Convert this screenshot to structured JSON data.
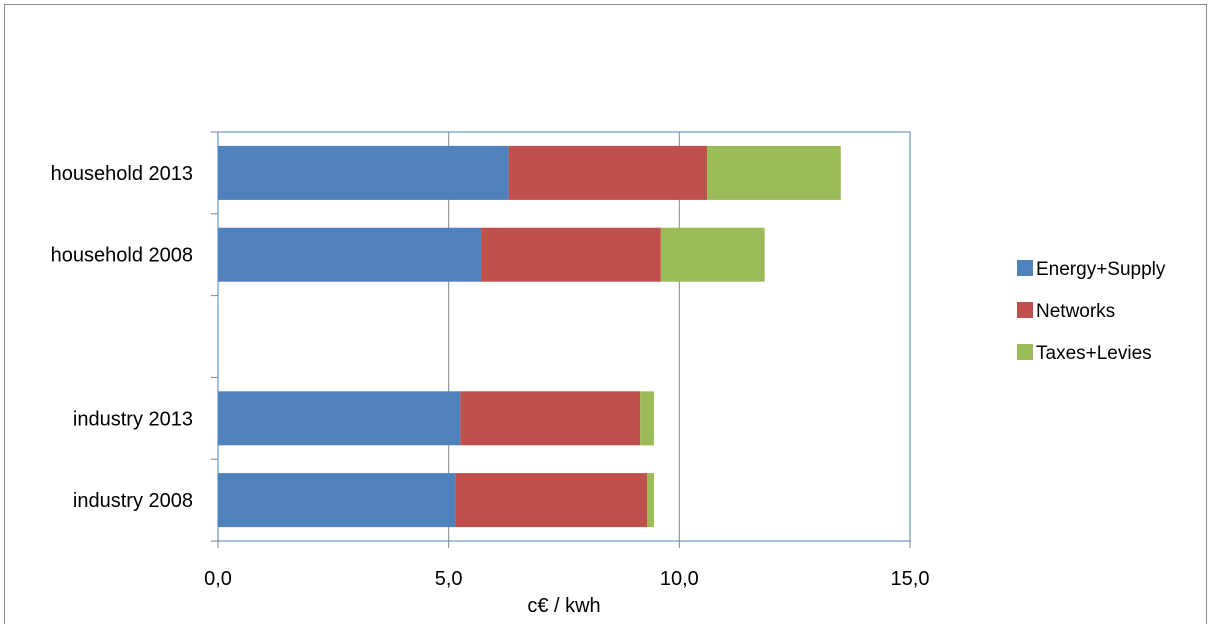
{
  "chart_data": {
    "type": "bar",
    "orientation": "horizontal",
    "stacked": true,
    "categories": [
      "household 2013",
      "household 2008",
      "",
      "industry 2013",
      "industry 2008"
    ],
    "series": [
      {
        "name": "Energy+Supply",
        "color": "#4f81bd",
        "values": [
          6.3,
          5.7,
          null,
          5.25,
          5.15
        ]
      },
      {
        "name": "Networks",
        "color": "#c0504d",
        "values": [
          4.3,
          3.9,
          null,
          3.9,
          4.15
        ]
      },
      {
        "name": "Taxes+Levies",
        "color": "#9bbb59",
        "values": [
          2.9,
          2.25,
          null,
          0.3,
          0.15
        ]
      }
    ],
    "xlabel": "c€ / kwh",
    "ylabel": "",
    "title": "",
    "xlim": [
      0,
      15
    ],
    "xticks": [
      0,
      5,
      10,
      15
    ],
    "xtick_labels": [
      "0,0",
      "5,0",
      "10,0",
      "15,0"
    ],
    "grid": "vertical",
    "legend_position": "right",
    "plot_border_color": "#4f81bd",
    "grid_color": "#868686"
  }
}
